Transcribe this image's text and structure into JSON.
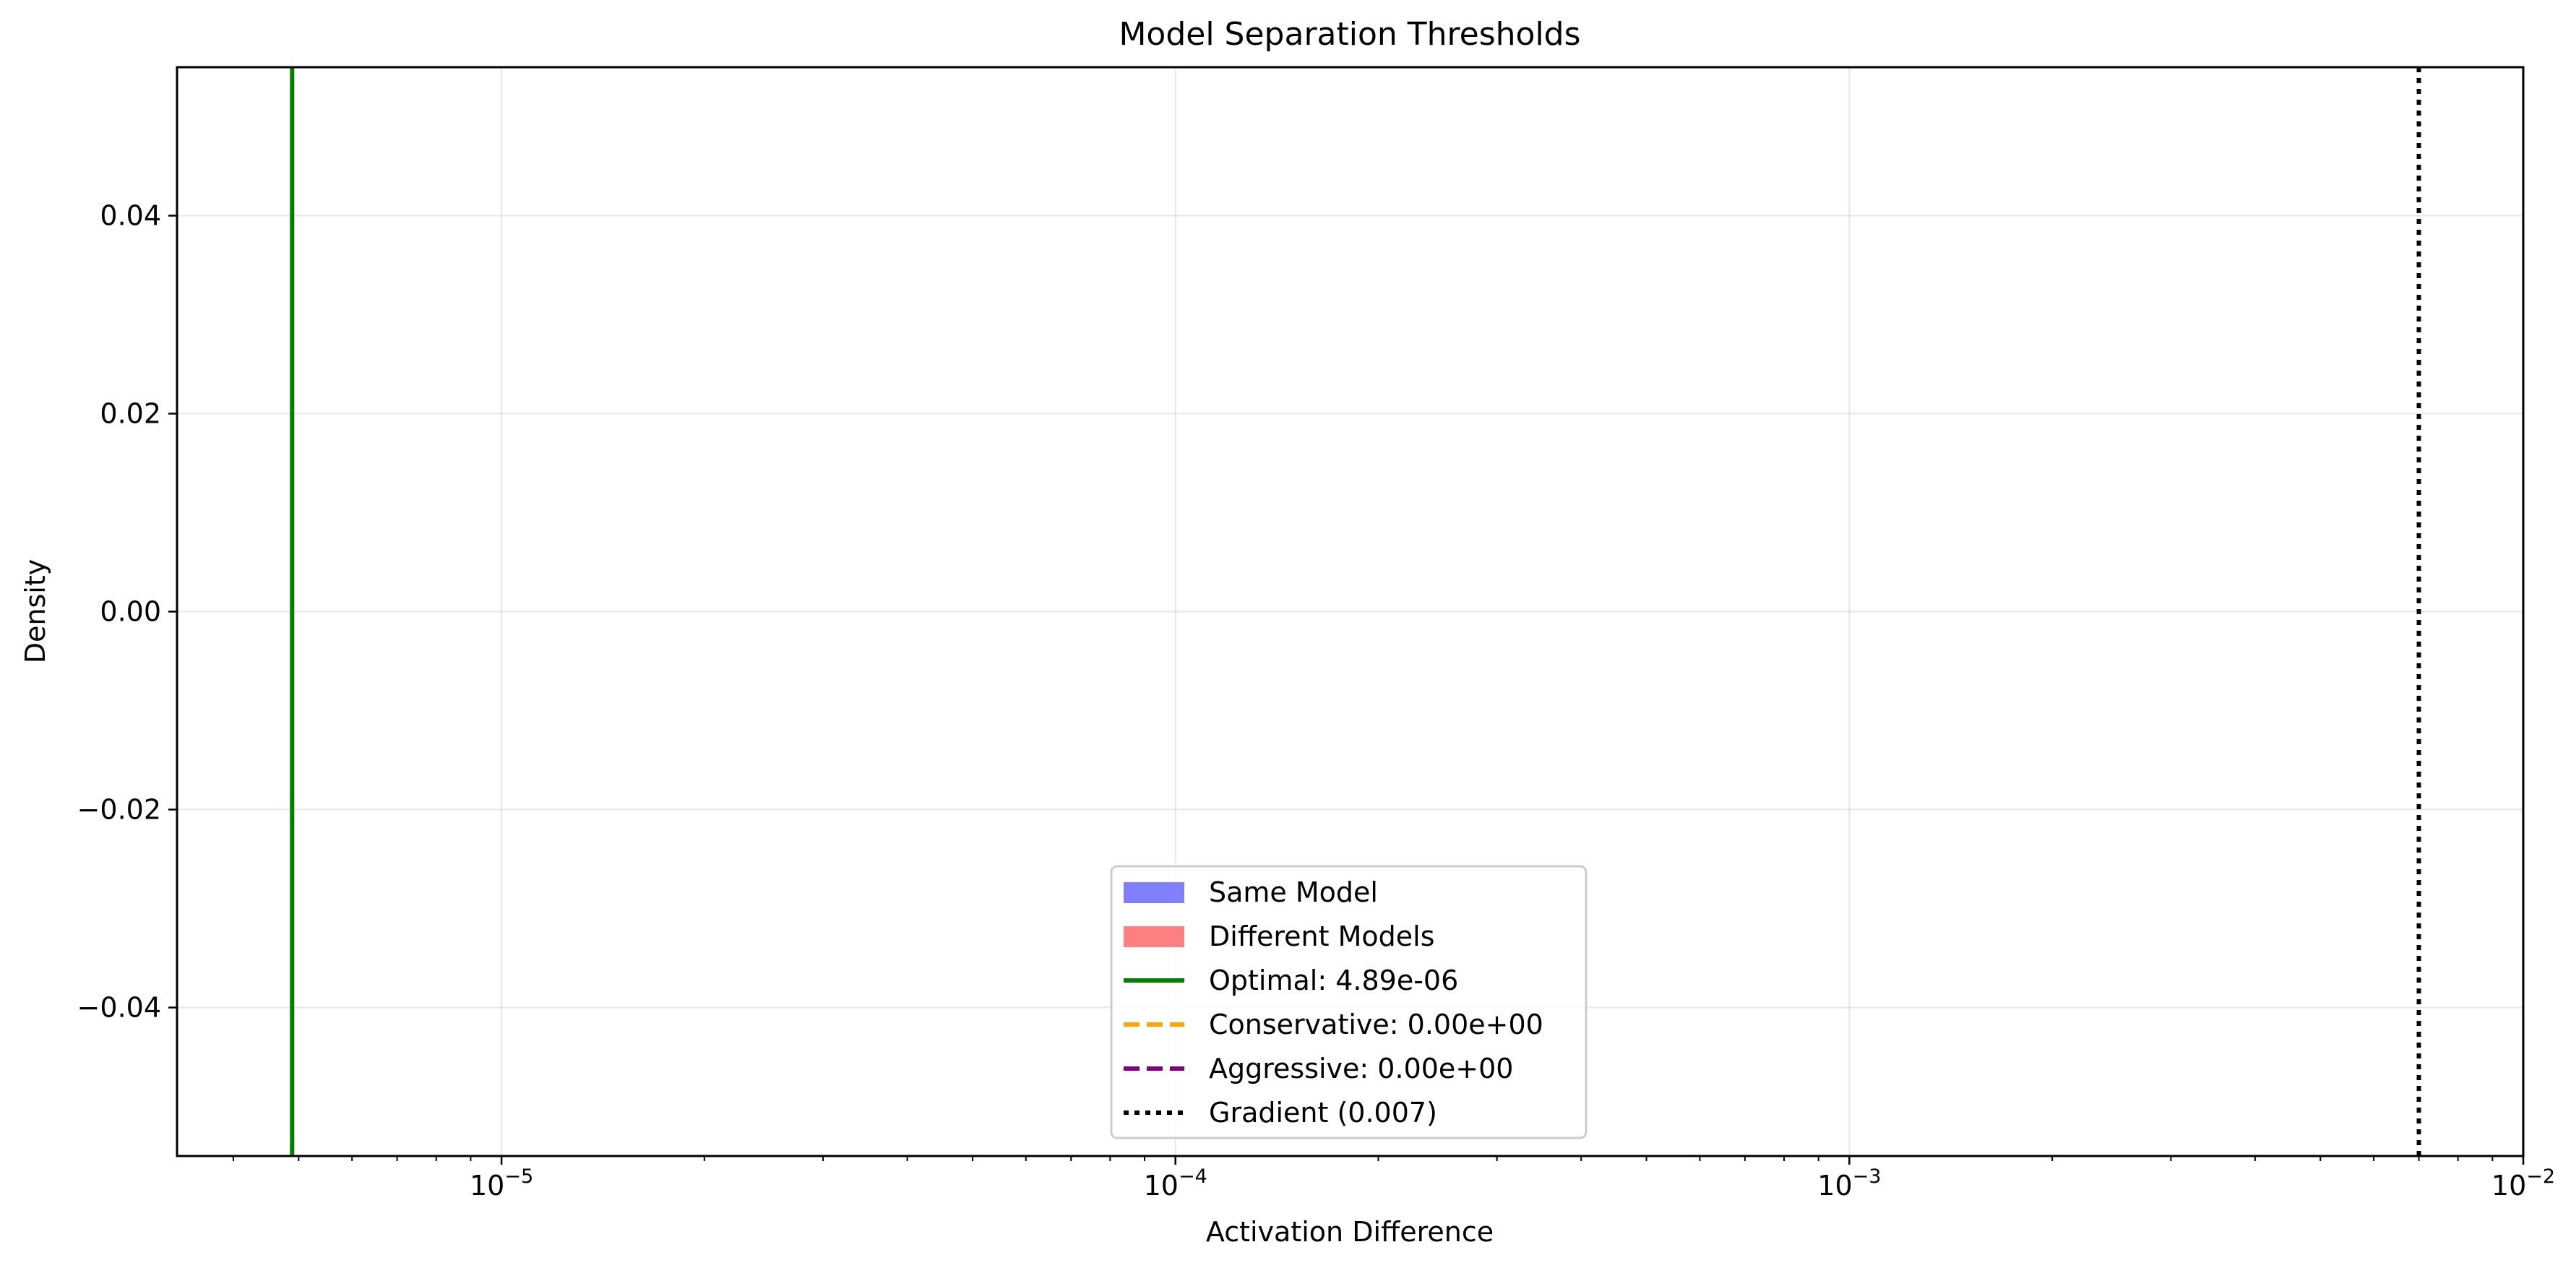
{
  "chart_data": {
    "type": "line",
    "title": "Model Separation Thresholds",
    "xlabel": "Activation Difference",
    "ylabel": "Density",
    "x_scale": "log",
    "xlim": [
      3.3e-06,
      0.01
    ],
    "ylim": [
      -0.055,
      0.055
    ],
    "grid": true,
    "legend_position": "lower center",
    "x_ticks": [
      {
        "value": 1e-05,
        "base": "10",
        "exp": "−5"
      },
      {
        "value": 0.0001,
        "base": "10",
        "exp": "−4"
      },
      {
        "value": 0.001,
        "base": "10",
        "exp": "−3"
      },
      {
        "value": 0.01,
        "base": "10",
        "exp": "−2"
      }
    ],
    "y_ticks": [
      {
        "value": 0.04,
        "label": "0.04"
      },
      {
        "value": 0.02,
        "label": "0.02"
      },
      {
        "value": 0.0,
        "label": "0.00"
      },
      {
        "value": -0.02,
        "label": "−0.02"
      },
      {
        "value": -0.04,
        "label": "−0.04"
      }
    ],
    "series": [
      {
        "name": "Same Model",
        "kind": "histogram",
        "color": "#8080ff",
        "values": []
      },
      {
        "name": "Different Models",
        "kind": "histogram",
        "color": "#ff8080",
        "values": []
      },
      {
        "name": "Optimal: 4.89e-06",
        "kind": "vline",
        "x": 4.89e-06,
        "color": "#008000",
        "style": "solid"
      },
      {
        "name": "Conservative: 0.00e+00",
        "kind": "vline",
        "x": 0,
        "color": "#ffa500",
        "style": "dashed"
      },
      {
        "name": "Aggressive: 0.00e+00",
        "kind": "vline",
        "x": 0,
        "color": "#800080",
        "style": "dashed"
      },
      {
        "name": "Gradient (0.007)",
        "kind": "vline",
        "x": 0.007,
        "color": "#000000",
        "style": "dotted"
      }
    ]
  }
}
